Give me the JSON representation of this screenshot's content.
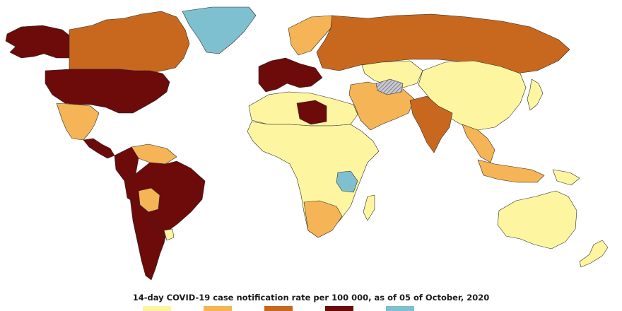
{
  "caption": "14-day COVID-19 case notification rate per 100 000, as of 05 of October, 2020",
  "colors": {
    "water": "#ffffff",
    "border": "#2b2b2b",
    "class1": "#fdf5a0",
    "class2": "#f5b455",
    "class3": "#c8681e",
    "class4": "#6d0a0a",
    "nodata": "#7ec0cf",
    "hatched": "#9a9aa6"
  },
  "legend": {
    "swatches": [
      {
        "key": "class1",
        "color": "#fdf5a0"
      },
      {
        "key": "class2",
        "color": "#f5b455"
      },
      {
        "key": "class3",
        "color": "#c8681e"
      },
      {
        "key": "class4",
        "color": "#6d0a0a"
      },
      {
        "key": "nodata",
        "color": "#7ec0cf"
      }
    ]
  },
  "regions": [
    {
      "name": "alaska",
      "class": "class4"
    },
    {
      "name": "canada",
      "class": "class3"
    },
    {
      "name": "greenland",
      "class": "nodata"
    },
    {
      "name": "united-states",
      "class": "class4"
    },
    {
      "name": "mexico",
      "class": "class2"
    },
    {
      "name": "central-america",
      "class": "class4"
    },
    {
      "name": "venezuela",
      "class": "class2"
    },
    {
      "name": "colombia",
      "class": "class4"
    },
    {
      "name": "brazil",
      "class": "class4"
    },
    {
      "name": "bolivia",
      "class": "class2"
    },
    {
      "name": "argentina",
      "class": "class4"
    },
    {
      "name": "uruguay",
      "class": "class1"
    },
    {
      "name": "west-europe",
      "class": "class4"
    },
    {
      "name": "scandinavia",
      "class": "class2"
    },
    {
      "name": "russia",
      "class": "class3"
    },
    {
      "name": "kazakhstan",
      "class": "class1"
    },
    {
      "name": "china",
      "class": "class1"
    },
    {
      "name": "india",
      "class": "class3"
    },
    {
      "name": "middle-east",
      "class": "class2"
    },
    {
      "name": "libya",
      "class": "class4"
    },
    {
      "name": "north-africa",
      "class": "class1"
    },
    {
      "name": "africa",
      "class": "class1"
    },
    {
      "name": "tanzania",
      "class": "nodata"
    },
    {
      "name": "south-africa",
      "class": "class2"
    },
    {
      "name": "madagascar",
      "class": "class1"
    },
    {
      "name": "australia",
      "class": "class1"
    },
    {
      "name": "new-zealand",
      "class": "class1"
    },
    {
      "name": "southeast-asia",
      "class": "class2"
    },
    {
      "name": "indonesia",
      "class": "class2"
    },
    {
      "name": "japan",
      "class": "class1"
    },
    {
      "name": "papua",
      "class": "class1"
    }
  ]
}
